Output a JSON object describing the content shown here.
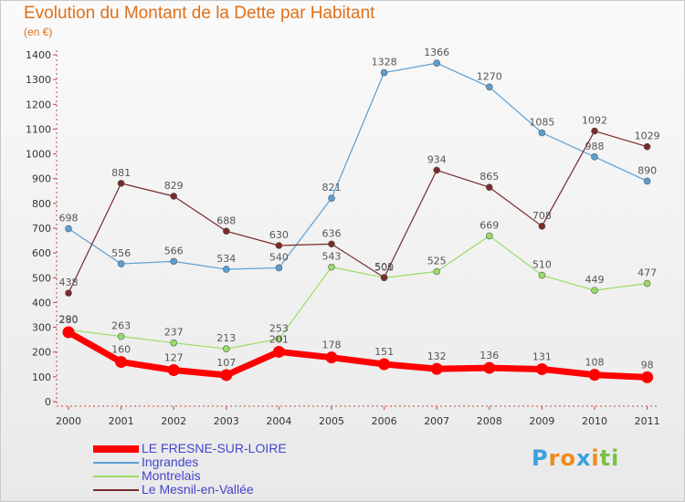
{
  "chart_data": {
    "type": "line",
    "title": "Evolution du Montant de la Dette par Habitant",
    "subtitle": "(en €)",
    "x": [
      "2000",
      "2001",
      "2002",
      "2003",
      "2004",
      "2005",
      "2006",
      "2007",
      "2008",
      "2009",
      "2010",
      "2011"
    ],
    "ylim": [
      0,
      1400
    ],
    "yticks": [
      0,
      100,
      200,
      300,
      400,
      500,
      600,
      700,
      800,
      900,
      1000,
      1100,
      1200,
      1300,
      1400
    ],
    "grid": false,
    "legend_position": "bottom-left",
    "series": [
      {
        "name": "LE FRESNE-SUR-LOIRE",
        "color": "#ff0000",
        "values": [
          280,
          160,
          127,
          107,
          201,
          178,
          151,
          132,
          136,
          131,
          108,
          98
        ]
      },
      {
        "name": "Ingrandes",
        "color": "#5a9fd4",
        "values": [
          698,
          556,
          566,
          534,
          540,
          821,
          1328,
          1366,
          1270,
          1085,
          988,
          890
        ]
      },
      {
        "name": "Montrelais",
        "color": "#99dd66",
        "values": [
          290,
          263,
          237,
          213,
          253,
          543,
          500,
          525,
          669,
          510,
          449,
          477
        ]
      },
      {
        "name": "Le Mesnil-en-Vallée",
        "color": "#7a2a2a",
        "values": [
          438,
          881,
          829,
          688,
          630,
          636,
          501,
          934,
          865,
          708,
          1092,
          1029
        ]
      }
    ]
  },
  "logo": {
    "letters": [
      "P",
      "r",
      "o",
      "x",
      "i",
      "t",
      "i"
    ],
    "colors": [
      "#3aa0e0",
      "#f08a1c",
      "#f08a1c",
      "#3aa0e0",
      "#f08a1c",
      "#7ac143",
      "#7ac143"
    ]
  }
}
